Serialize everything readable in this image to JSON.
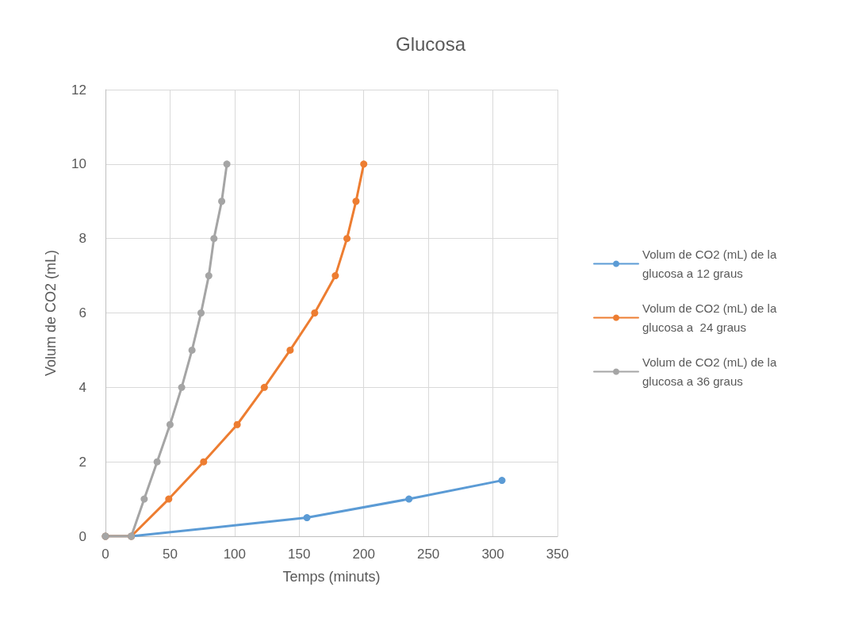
{
  "chart_data": {
    "type": "line",
    "title": "Glucosa",
    "xlabel": "Temps (minuts)",
    "ylabel": "Volum de CO2 (mL)",
    "xlim": [
      0,
      350
    ],
    "xticks": [
      0,
      50,
      100,
      150,
      200,
      250,
      300,
      350
    ],
    "ylim": [
      0,
      12
    ],
    "yticks": [
      0,
      2,
      4,
      6,
      8,
      10,
      12
    ],
    "grid": true,
    "legend": "right",
    "marker": "circle",
    "line_style": "solid",
    "series": [
      {
        "name": "Volum de CO2 (mL) de la glucosa a 12 graus",
        "color": "#5b9bd5",
        "x": [
          0,
          20,
          156,
          235,
          307
        ],
        "values": [
          0,
          0,
          0.5,
          1,
          1.5
        ]
      },
      {
        "name": "Volum de CO2 (mL) de la glucosa a  24 graus",
        "color": "#ed7d31",
        "x": [
          0,
          20,
          49,
          76,
          102,
          123,
          143,
          162,
          178,
          187,
          194,
          200
        ],
        "values": [
          0,
          0,
          1,
          2,
          3,
          4,
          5,
          6,
          7,
          8,
          9,
          10
        ]
      },
      {
        "name": "Volum de CO2 (mL) de la glucosa a 36 graus",
        "color": "#a5a5a5",
        "x": [
          0,
          20,
          30,
          40,
          50,
          59,
          67,
          74,
          80,
          84,
          90,
          94
        ],
        "values": [
          0,
          0,
          1,
          2,
          3,
          4,
          5,
          6,
          7,
          8,
          9,
          10
        ]
      }
    ]
  }
}
